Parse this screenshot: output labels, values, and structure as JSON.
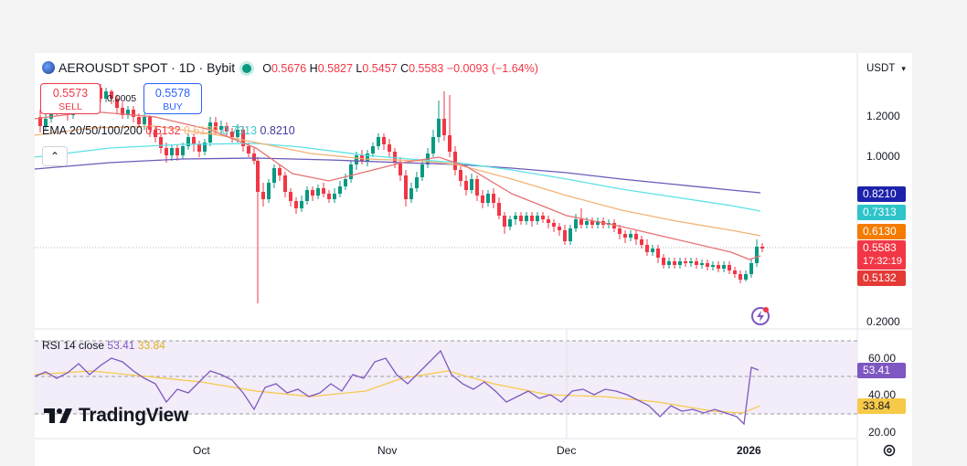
{
  "header": {
    "symbol": "AEROUSDT SPOT · 1D · Bybit",
    "open_label": "O",
    "open": "0.5676",
    "high_label": "H",
    "high": "0.5827",
    "low_label": "L",
    "low": "0.5457",
    "close_label": "C",
    "close": "0.5583",
    "change": "−0.0093 (−1.64%)"
  },
  "trade": {
    "sell_price": "0.5573",
    "sell_label": "SELL",
    "buy_price": "0.5578",
    "buy_label": "BUY",
    "spread": "0.0005"
  },
  "ema_legend": {
    "label": "EMA 20/50/100/200",
    "ema20": "0.5132",
    "ema50": "0.6130",
    "ema100": "0.7313",
    "ema200": "0.8210"
  },
  "currency": "USDT",
  "price_axis": [
    "1.2000",
    "1.0000",
    "0.2000"
  ],
  "price_tags": {
    "ema200": "0.8210",
    "ema100": "0.7313",
    "ema50": "0.6130",
    "last": "0.5583",
    "countdown": "17:32:19",
    "ema20": "0.5132"
  },
  "rsi": {
    "label": "RSI 14 close",
    "value": "53.41",
    "ma": "33.84",
    "axis": [
      "60.00",
      "40.00",
      "20.00"
    ]
  },
  "time_axis": [
    "Oct",
    "Nov",
    "Dec",
    "2026"
  ],
  "logo": "TradingView",
  "colors": {
    "up": "#089981",
    "down": "#f23645",
    "ema20": "#e57373",
    "ema50": "#f5b277",
    "ema100": "#5ce1e6",
    "ema200": "#6b5bb8",
    "rsi": "#7e57c2",
    "rsi_ma": "#f7c948"
  },
  "chart_data": {
    "type": "line",
    "title": "AEROUSDT SPOT · 1D · Bybit",
    "x": [
      "Oct",
      "Nov",
      "Dec",
      "2026"
    ],
    "series": [
      {
        "name": "EMA 20",
        "values": [
          1.08,
          0.86,
          0.77,
          0.52
        ]
      },
      {
        "name": "EMA 50",
        "values": [
          1.04,
          0.95,
          0.82,
          0.61
        ]
      },
      {
        "name": "EMA 100",
        "values": [
          1.02,
          0.98,
          0.88,
          0.73
        ]
      },
      {
        "name": "EMA 200",
        "values": [
          0.99,
          0.99,
          0.93,
          0.82
        ]
      }
    ],
    "last_price": 0.5583,
    "rsi": {
      "value": 53.41,
      "ma": 33.84
    }
  }
}
